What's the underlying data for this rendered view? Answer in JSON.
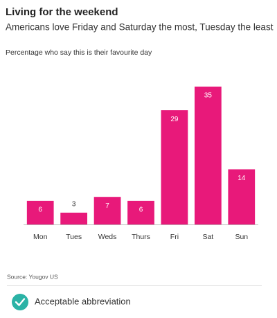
{
  "chart_data": {
    "type": "bar",
    "title": "Living for the weekend",
    "subtitle": "Americans love Friday and Saturday the most, Tuesday the least",
    "y_label": "Percentage who say this is their favourite day",
    "categories": [
      "Mon",
      "Tues",
      "Weds",
      "Thurs",
      "Fri",
      "Sat",
      "Sun"
    ],
    "values": [
      6,
      3,
      7,
      6,
      29,
      35,
      14
    ],
    "color": "#e8197a",
    "source": "Source: Yougov US"
  },
  "footer": {
    "label": "Acceptable abbreviation"
  }
}
